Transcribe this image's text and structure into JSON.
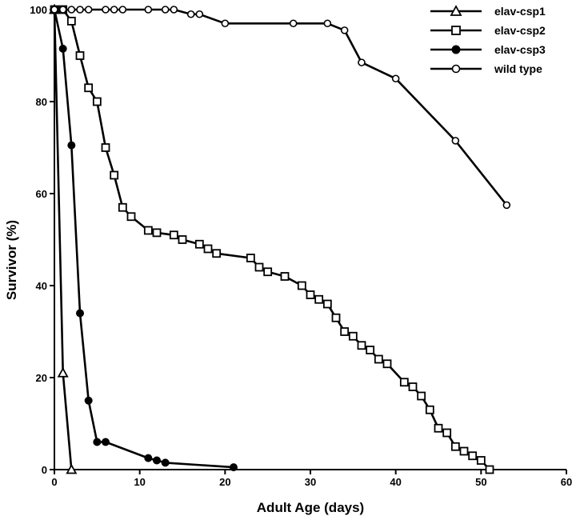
{
  "chart_data": {
    "type": "line",
    "title": "",
    "xlabel": "Adult Age (days)",
    "ylabel": "Survivor (%)",
    "xlim": [
      0,
      60
    ],
    "ylim": [
      0,
      100
    ],
    "xticks": [
      0,
      10,
      20,
      30,
      40,
      50,
      60
    ],
    "yticks": [
      0,
      20,
      40,
      60,
      80,
      100
    ],
    "grid": false,
    "legend": "top-right",
    "series": [
      {
        "name": "elav-csp1",
        "marker": "triangle-open",
        "points": [
          [
            0,
            100
          ],
          [
            1,
            21
          ],
          [
            2,
            0
          ]
        ]
      },
      {
        "name": "elav-csp2",
        "marker": "square-open",
        "points": [
          [
            0,
            100
          ],
          [
            1,
            100
          ],
          [
            2,
            97.5
          ],
          [
            3,
            90
          ],
          [
            4,
            83
          ],
          [
            5,
            80
          ],
          [
            6,
            70
          ],
          [
            7,
            64
          ],
          [
            8,
            57
          ],
          [
            9,
            55
          ],
          [
            11,
            52
          ],
          [
            12,
            51.5
          ],
          [
            14,
            51
          ],
          [
            15,
            50
          ],
          [
            17,
            49
          ],
          [
            18,
            48
          ],
          [
            19,
            47
          ],
          [
            23,
            46
          ],
          [
            24,
            44
          ],
          [
            25,
            43
          ],
          [
            27,
            42
          ],
          [
            29,
            40
          ],
          [
            30,
            38
          ],
          [
            31,
            37
          ],
          [
            32,
            36
          ],
          [
            33,
            33
          ],
          [
            34,
            30
          ],
          [
            35,
            29
          ],
          [
            36,
            27
          ],
          [
            37,
            26
          ],
          [
            38,
            24
          ],
          [
            39,
            23
          ],
          [
            41,
            19
          ],
          [
            42,
            18
          ],
          [
            43,
            16
          ],
          [
            44,
            13
          ],
          [
            45,
            9
          ],
          [
            46,
            8
          ],
          [
            47,
            5
          ],
          [
            48,
            4
          ],
          [
            49,
            3
          ],
          [
            50,
            2
          ],
          [
            51,
            0
          ]
        ]
      },
      {
        "name": "elav-csp3",
        "marker": "circle-filled",
        "points": [
          [
            0,
            100
          ],
          [
            1,
            91.5
          ],
          [
            2,
            70.5
          ],
          [
            3,
            34
          ],
          [
            4,
            15
          ],
          [
            5,
            6
          ],
          [
            6,
            6
          ],
          [
            11,
            2.5
          ],
          [
            12,
            2
          ],
          [
            13,
            1.5
          ],
          [
            21,
            0.5
          ]
        ]
      },
      {
        "name": "wild type",
        "marker": "circle-open",
        "points": [
          [
            0,
            100
          ],
          [
            1,
            100
          ],
          [
            2,
            100
          ],
          [
            3,
            100
          ],
          [
            4,
            100
          ],
          [
            6,
            100
          ],
          [
            7,
            100
          ],
          [
            8,
            100
          ],
          [
            11,
            100
          ],
          [
            13,
            100
          ],
          [
            14,
            100
          ],
          [
            16,
            99
          ],
          [
            17,
            99
          ],
          [
            20,
            97
          ],
          [
            28,
            97
          ],
          [
            32,
            97
          ],
          [
            34,
            95.5
          ],
          [
            36,
            88.5
          ],
          [
            40,
            85
          ],
          [
            47,
            71.5
          ],
          [
            53,
            57.5
          ]
        ]
      }
    ]
  }
}
